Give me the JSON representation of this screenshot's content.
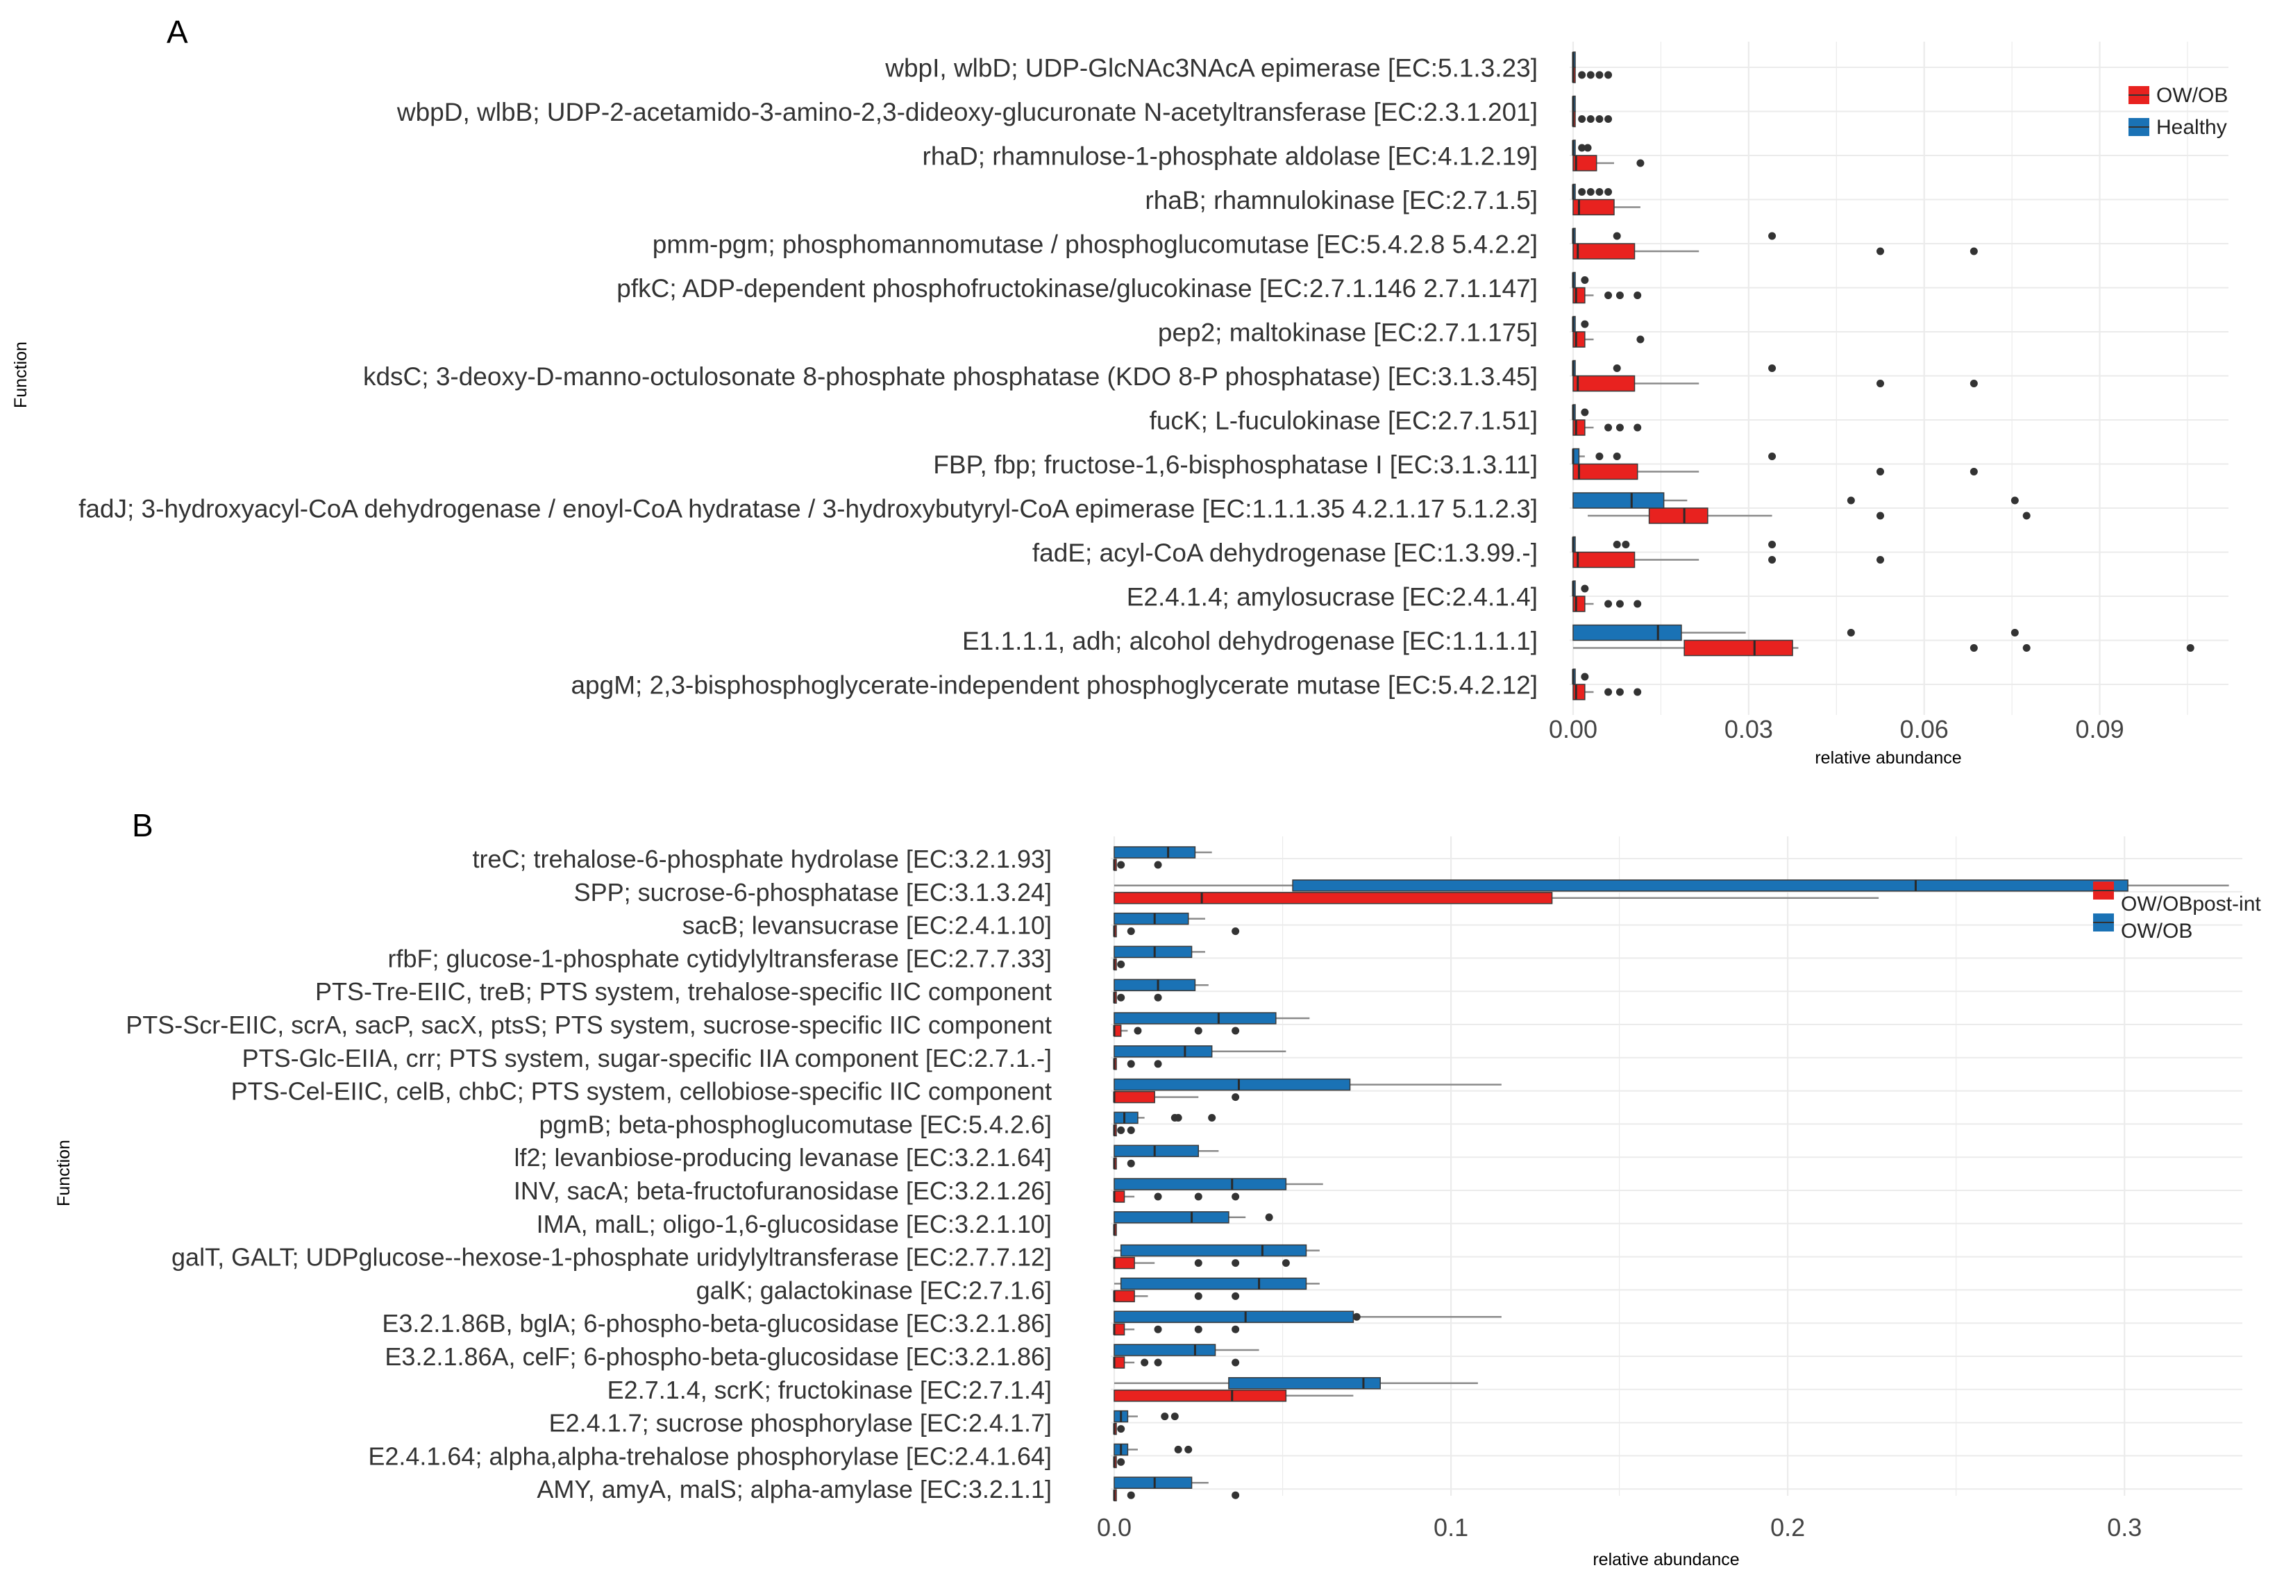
{
  "colors": {
    "red": "#e8221f",
    "blue": "#1a72b5",
    "grid": "#ebebeb",
    "whisker": "#8a8a8a",
    "outlier": "#333333"
  },
  "panel_a": {
    "label": "A",
    "y_axis_title": "Function",
    "x_axis_title": "relative abundance",
    "x_ticks": [
      "0.00",
      "0.03",
      "0.06",
      "0.09"
    ],
    "legend": [
      "OW/OB",
      "Healthy"
    ]
  },
  "panel_b": {
    "label": "B",
    "y_axis_title": "Function",
    "x_axis_title": "relative abundance",
    "x_ticks": [
      "0.0",
      "0.1",
      "0.2",
      "0.3"
    ],
    "legend": [
      "OW/OBpost-int",
      "OW/OB"
    ]
  },
  "chart_data": [
    {
      "type": "box",
      "panel": "A",
      "xlabel": "relative abundance",
      "ylabel": "Function",
      "xlim": [
        0,
        0.112
      ],
      "xticks": [
        0,
        0.03,
        0.06,
        0.09
      ],
      "legend": [
        "OW/OB",
        "Healthy"
      ],
      "categories": [
        "wbpI, wlbD; UDP-GlcNAc3NAcA epimerase [EC:5.1.3.23]",
        "wbpD, wlbB; UDP-2-acetamido-3-amino-2,3-dideoxy-glucuronate N-acetyltransferase [EC:2.3.1.201]",
        "rhaD; rhamnulose-1-phosphate aldolase [EC:4.1.2.19]",
        "rhaB; rhamnulokinase [EC:2.7.1.5]",
        "pmm-pgm; phosphomannomutase / phosphoglucomutase [EC:5.4.2.8 5.4.2.2]",
        "pfkC; ADP-dependent phosphofructokinase/glucokinase [EC:2.7.1.146 2.7.1.147]",
        "pep2; maltokinase [EC:2.7.1.175]",
        "kdsC; 3-deoxy-D-manno-octulosonate 8-phosphate phosphatase (KDO 8-P phosphatase) [EC:3.1.3.45]",
        "fucK; L-fuculokinase [EC:2.7.1.51]",
        "FBP, fbp; fructose-1,6-bisphosphatase I [EC:3.1.3.11]",
        "fadJ; 3-hydroxyacyl-CoA dehydrogenase / enoyl-CoA hydratase / 3-hydroxybutyryl-CoA epimerase [EC:1.1.1.35 4.2.1.17 5.1.2.3]",
        "fadE; acyl-CoA dehydrogenase [EC:1.3.99.-]",
        "E2.4.1.4; amylosucrase [EC:2.4.1.4]",
        "E1.1.1.1, adh; alcohol dehydrogenase [EC:1.1.1.1]",
        "apgM; 2,3-bisphosphoglycerate-independent phosphoglycerate mutase [EC:5.4.2.12]"
      ],
      "series": [
        {
          "name": "OW/OB",
          "color": "#e8221f",
          "boxes": [
            {
              "lo": 0,
              "q1": 0,
              "med": 0,
              "q3": 0,
              "hi": 0,
              "out": [
                0.0015,
                0.003,
                0.0045,
                0.006
              ]
            },
            {
              "lo": 0,
              "q1": 0,
              "med": 0,
              "q3": 0,
              "hi": 0,
              "out": [
                0.0015,
                0.003,
                0.0045,
                0.006
              ]
            },
            {
              "lo": 0,
              "q1": 0,
              "med": 0.0005,
              "q3": 0.004,
              "hi": 0.007,
              "out": [
                0.0115
              ]
            },
            {
              "lo": 0,
              "q1": 0,
              "med": 0.001,
              "q3": 0.007,
              "hi": 0.0115,
              "out": []
            },
            {
              "lo": 0,
              "q1": 0,
              "med": 0.0008,
              "q3": 0.0105,
              "hi": 0.0215,
              "out": [
                0.0525,
                0.0685
              ]
            },
            {
              "lo": 0,
              "q1": 0,
              "med": 0.0005,
              "q3": 0.002,
              "hi": 0.0035,
              "out": [
                0.006,
                0.008,
                0.011
              ]
            },
            {
              "lo": 0,
              "q1": 0,
              "med": 0.0005,
              "q3": 0.002,
              "hi": 0.0035,
              "out": [
                0.0115
              ]
            },
            {
              "lo": 0,
              "q1": 0,
              "med": 0.0008,
              "q3": 0.0105,
              "hi": 0.0215,
              "out": [
                0.0525,
                0.0685
              ]
            },
            {
              "lo": 0,
              "q1": 0,
              "med": 0.0005,
              "q3": 0.002,
              "hi": 0.0035,
              "out": [
                0.006,
                0.008,
                0.011
              ]
            },
            {
              "lo": 0,
              "q1": 0,
              "med": 0.001,
              "q3": 0.011,
              "hi": 0.0215,
              "out": [
                0.0525,
                0.0685
              ]
            },
            {
              "lo": 0.0025,
              "q1": 0.013,
              "med": 0.019,
              "q3": 0.023,
              "hi": 0.034,
              "out": [
                0.0525,
                0.0775
              ]
            },
            {
              "lo": 0,
              "q1": 0,
              "med": 0.0008,
              "q3": 0.0105,
              "hi": 0.0215,
              "out": [
                0.034,
                0.0525
              ]
            },
            {
              "lo": 0,
              "q1": 0,
              "med": 0.0005,
              "q3": 0.002,
              "hi": 0.0035,
              "out": [
                0.006,
                0.008,
                0.011
              ]
            },
            {
              "lo": 0,
              "q1": 0.019,
              "med": 0.031,
              "q3": 0.0375,
              "hi": 0.0385,
              "out": [
                0.0685,
                0.0775,
                0.1055
              ]
            },
            {
              "lo": 0,
              "q1": 0,
              "med": 0.0005,
              "q3": 0.002,
              "hi": 0.0035,
              "out": [
                0.006,
                0.008,
                0.011
              ]
            }
          ]
        },
        {
          "name": "Healthy",
          "color": "#1a72b5",
          "boxes": [
            {
              "lo": 0,
              "q1": 0,
              "med": 0,
              "q3": 0,
              "hi": 0,
              "out": []
            },
            {
              "lo": 0,
              "q1": 0,
              "med": 0,
              "q3": 0,
              "hi": 0,
              "out": []
            },
            {
              "lo": 0,
              "q1": 0,
              "med": 0,
              "q3": 0,
              "hi": 0,
              "out": [
                0.0015,
                0.0025
              ]
            },
            {
              "lo": 0,
              "q1": 0,
              "med": 0,
              "q3": 0,
              "hi": 0,
              "out": [
                0.0015,
                0.003,
                0.0045,
                0.006
              ]
            },
            {
              "lo": 0,
              "q1": 0,
              "med": 0,
              "q3": 0,
              "hi": 0,
              "out": [
                0.0075,
                0.034
              ]
            },
            {
              "lo": 0,
              "q1": 0,
              "med": 0,
              "q3": 0,
              "hi": 0,
              "out": [
                0.002
              ]
            },
            {
              "lo": 0,
              "q1": 0,
              "med": 0,
              "q3": 0,
              "hi": 0,
              "out": [
                0.002
              ]
            },
            {
              "lo": 0,
              "q1": 0,
              "med": 0,
              "q3": 0,
              "hi": 0,
              "out": [
                0.0075,
                0.034
              ]
            },
            {
              "lo": 0,
              "q1": 0,
              "med": 0,
              "q3": 0,
              "hi": 0,
              "out": [
                0.002
              ]
            },
            {
              "lo": 0,
              "q1": 0,
              "med": 0,
              "q3": 0.001,
              "hi": 0.002,
              "out": [
                0.0045,
                0.0075,
                0.034
              ]
            },
            {
              "lo": 0,
              "q1": 0,
              "med": 0.01,
              "q3": 0.0155,
              "hi": 0.0195,
              "out": [
                0.0475,
                0.0755
              ]
            },
            {
              "lo": 0,
              "q1": 0,
              "med": 0,
              "q3": 0,
              "hi": 0,
              "out": [
                0.0075,
                0.009,
                0.034
              ]
            },
            {
              "lo": 0,
              "q1": 0,
              "med": 0,
              "q3": 0,
              "hi": 0,
              "out": [
                0.002
              ]
            },
            {
              "lo": 0,
              "q1": 0,
              "med": 0.0145,
              "q3": 0.0185,
              "hi": 0.0295,
              "out": [
                0.0475,
                0.0755
              ]
            },
            {
              "lo": 0,
              "q1": 0,
              "med": 0,
              "q3": 0,
              "hi": 0,
              "out": [
                0.002
              ]
            }
          ]
        }
      ]
    },
    {
      "type": "box",
      "panel": "B",
      "xlabel": "relative abundance",
      "ylabel": "Function",
      "xlim": [
        0,
        0.335
      ],
      "xticks": [
        0,
        0.1,
        0.2,
        0.3
      ],
      "legend": [
        "OW/OBpost-int",
        "OW/OB"
      ],
      "categories": [
        "treC; trehalose-6-phosphate hydrolase [EC:3.2.1.93]",
        "SPP; sucrose-6-phosphatase [EC:3.1.3.24]",
        "sacB; levansucrase [EC:2.4.1.10]",
        "rfbF; glucose-1-phosphate cytidylyltransferase [EC:2.7.7.33]",
        "PTS-Tre-EIIC, treB; PTS system, trehalose-specific IIC component",
        "PTS-Scr-EIIC, scrA, sacP, sacX, ptsS; PTS system, sucrose-specific IIC component",
        "PTS-Glc-EIIA, crr; PTS system, sugar-specific IIA component [EC:2.7.1.-]",
        "PTS-Cel-EIIC, celB, chbC; PTS system, cellobiose-specific IIC component",
        "pgmB; beta-phosphoglucomutase [EC:5.4.2.6]",
        "lf2; levanbiose-producing levanase [EC:3.2.1.64]",
        "INV, sacA; beta-fructofuranosidase [EC:3.2.1.26]",
        "IMA, malL; oligo-1,6-glucosidase [EC:3.2.1.10]",
        "galT, GALT; UDPglucose--hexose-1-phosphate uridylyltransferase [EC:2.7.7.12]",
        "galK; galactokinase [EC:2.7.1.6]",
        "E3.2.1.86B, bglA; 6-phospho-beta-glucosidase [EC:3.2.1.86]",
        "E3.2.1.86A, celF; 6-phospho-beta-glucosidase [EC:3.2.1.86]",
        "E2.7.1.4, scrK; fructokinase [EC:2.7.1.4]",
        "E2.4.1.7; sucrose phosphorylase [EC:2.4.1.7]",
        "E2.4.1.64; alpha,alpha-trehalose phosphorylase [EC:2.4.1.64]",
        "AMY, amyA, malS; alpha-amylase [EC:3.2.1.1]"
      ],
      "series": [
        {
          "name": "OW/OBpost-int",
          "color": "#e8221f",
          "boxes": [
            {
              "lo": 0,
              "q1": 0,
              "med": 0,
              "q3": 0,
              "hi": 0,
              "out": [
                0.002,
                0.013
              ]
            },
            {
              "lo": 0,
              "q1": 0,
              "med": 0.026,
              "q3": 0.13,
              "hi": 0.227,
              "out": []
            },
            {
              "lo": 0,
              "q1": 0,
              "med": 0,
              "q3": 0,
              "hi": 0,
              "out": [
                0.005,
                0.036
              ]
            },
            {
              "lo": 0,
              "q1": 0,
              "med": 0,
              "q3": 0,
              "hi": 0,
              "out": [
                0.002
              ]
            },
            {
              "lo": 0,
              "q1": 0,
              "med": 0,
              "q3": 0,
              "hi": 0,
              "out": [
                0.002,
                0.013
              ]
            },
            {
              "lo": 0,
              "q1": 0,
              "med": 0,
              "q3": 0.002,
              "hi": 0.004,
              "out": [
                0.007,
                0.025,
                0.036
              ]
            },
            {
              "lo": 0,
              "q1": 0,
              "med": 0,
              "q3": 0,
              "hi": 0,
              "out": [
                0.005,
                0.013
              ]
            },
            {
              "lo": 0,
              "q1": 0,
              "med": 0,
              "q3": 0.012,
              "hi": 0.025,
              "out": [
                0.036
              ]
            },
            {
              "lo": 0,
              "q1": 0,
              "med": 0,
              "q3": 0,
              "hi": 0,
              "out": [
                0.002,
                0.005
              ]
            },
            {
              "lo": 0,
              "q1": 0,
              "med": 0,
              "q3": 0,
              "hi": 0,
              "out": [
                0.005
              ]
            },
            {
              "lo": 0,
              "q1": 0,
              "med": 0,
              "q3": 0.003,
              "hi": 0.006,
              "out": [
                0.013,
                0.025,
                0.036
              ]
            },
            {
              "lo": 0,
              "q1": 0,
              "med": 0,
              "q3": 0,
              "hi": 0,
              "out": []
            },
            {
              "lo": 0,
              "q1": 0,
              "med": 0,
              "q3": 0.006,
              "hi": 0.012,
              "out": [
                0.025,
                0.036,
                0.051
              ]
            },
            {
              "lo": 0,
              "q1": 0,
              "med": 0,
              "q3": 0.006,
              "hi": 0.01,
              "out": [
                0.025,
                0.036
              ]
            },
            {
              "lo": 0,
              "q1": 0,
              "med": 0,
              "q3": 0.003,
              "hi": 0.006,
              "out": [
                0.013,
                0.025,
                0.036
              ]
            },
            {
              "lo": 0,
              "q1": 0,
              "med": 0,
              "q3": 0.003,
              "hi": 0.006,
              "out": [
                0.009,
                0.013,
                0.036
              ]
            },
            {
              "lo": 0,
              "q1": 0,
              "med": 0.035,
              "q3": 0.051,
              "hi": 0.071,
              "out": []
            },
            {
              "lo": 0,
              "q1": 0,
              "med": 0,
              "q3": 0,
              "hi": 0,
              "out": [
                0.002
              ]
            },
            {
              "lo": 0,
              "q1": 0,
              "med": 0,
              "q3": 0,
              "hi": 0,
              "out": [
                0.002
              ]
            },
            {
              "lo": 0,
              "q1": 0,
              "med": 0,
              "q3": 0,
              "hi": 0,
              "out": [
                0.005,
                0.036
              ]
            }
          ]
        },
        {
          "name": "OW/OB",
          "color": "#1a72b5",
          "boxes": [
            {
              "lo": 0,
              "q1": 0,
              "med": 0.016,
              "q3": 0.024,
              "hi": 0.029,
              "out": []
            },
            {
              "lo": 0,
              "q1": 0.053,
              "med": 0.238,
              "q3": 0.301,
              "hi": 0.331,
              "out": []
            },
            {
              "lo": 0,
              "q1": 0,
              "med": 0.012,
              "q3": 0.022,
              "hi": 0.027,
              "out": []
            },
            {
              "lo": 0,
              "q1": 0,
              "med": 0.012,
              "q3": 0.023,
              "hi": 0.027,
              "out": []
            },
            {
              "lo": 0,
              "q1": 0,
              "med": 0.013,
              "q3": 0.024,
              "hi": 0.028,
              "out": []
            },
            {
              "lo": 0,
              "q1": 0,
              "med": 0.031,
              "q3": 0.048,
              "hi": 0.058,
              "out": []
            },
            {
              "lo": 0,
              "q1": 0,
              "med": 0.021,
              "q3": 0.029,
              "hi": 0.051,
              "out": []
            },
            {
              "lo": 0,
              "q1": 0,
              "med": 0.037,
              "q3": 0.07,
              "hi": 0.115,
              "out": []
            },
            {
              "lo": 0,
              "q1": 0,
              "med": 0.003,
              "q3": 0.007,
              "hi": 0.009,
              "out": [
                0.018,
                0.019,
                0.029
              ]
            },
            {
              "lo": 0,
              "q1": 0,
              "med": 0.012,
              "q3": 0.025,
              "hi": 0.031,
              "out": []
            },
            {
              "lo": 0,
              "q1": 0,
              "med": 0.035,
              "q3": 0.051,
              "hi": 0.062,
              "out": []
            },
            {
              "lo": 0,
              "q1": 0,
              "med": 0.023,
              "q3": 0.034,
              "hi": 0.039,
              "out": [
                0.046
              ]
            },
            {
              "lo": 0,
              "q1": 0.002,
              "med": 0.044,
              "q3": 0.057,
              "hi": 0.061,
              "out": []
            },
            {
              "lo": 0,
              "q1": 0.002,
              "med": 0.043,
              "q3": 0.057,
              "hi": 0.061,
              "out": []
            },
            {
              "lo": 0,
              "q1": 0,
              "med": 0.039,
              "q3": 0.071,
              "hi": 0.115,
              "out": [
                0.072
              ]
            },
            {
              "lo": 0,
              "q1": 0,
              "med": 0.024,
              "q3": 0.03,
              "hi": 0.043,
              "out": []
            },
            {
              "lo": 0,
              "q1": 0.034,
              "med": 0.074,
              "q3": 0.079,
              "hi": 0.108,
              "out": []
            },
            {
              "lo": 0,
              "q1": 0,
              "med": 0.002,
              "q3": 0.004,
              "hi": 0.007,
              "out": [
                0.015,
                0.018
              ]
            },
            {
              "lo": 0,
              "q1": 0,
              "med": 0.002,
              "q3": 0.004,
              "hi": 0.007,
              "out": [
                0.019,
                0.022
              ]
            },
            {
              "lo": 0,
              "q1": 0,
              "med": 0.012,
              "q3": 0.023,
              "hi": 0.028,
              "out": []
            }
          ]
        }
      ]
    }
  ]
}
